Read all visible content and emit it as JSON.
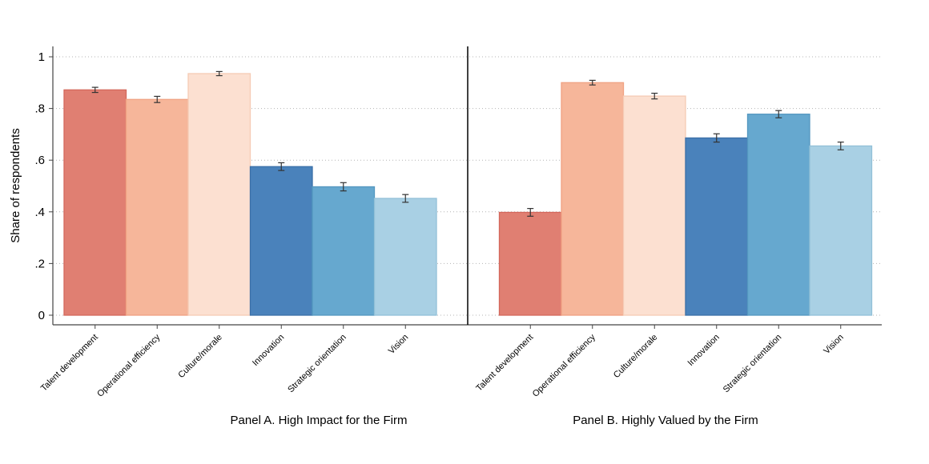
{
  "chart_data": {
    "type": "bar",
    "ylabel": "Share of respondents",
    "ylim": [
      0,
      1
    ],
    "yticks": [
      {
        "value": 0,
        "label": "0"
      },
      {
        "value": 0.2,
        "label": ".2"
      },
      {
        "value": 0.4,
        "label": ".4"
      },
      {
        "value": 0.6,
        "label": ".6"
      },
      {
        "value": 0.8,
        "label": ".8"
      },
      {
        "value": 1,
        "label": "1"
      }
    ],
    "grid": "horizontal-dotted",
    "categories": [
      "Talent development",
      "Operational efficiency",
      "Culture/morale",
      "Innovation",
      "Strategic orientation",
      "Vision"
    ],
    "colors": [
      "#e07f72",
      "#f6b69a",
      "#fce0d1",
      "#4a82bb",
      "#66a8cf",
      "#a9d0e4"
    ],
    "border_colors": [
      "#d4685c",
      "#f0a283",
      "#f5cbb5",
      "#3a70a8",
      "#5497c0",
      "#92c0d8"
    ],
    "panels": [
      {
        "title": "Panel A. High Impact for the Firm",
        "values": [
          0.872,
          0.835,
          0.935,
          0.575,
          0.497,
          0.452
        ],
        "err_low": [
          0.862,
          0.823,
          0.927,
          0.56,
          0.481,
          0.437
        ],
        "err_high": [
          0.882,
          0.847,
          0.943,
          0.59,
          0.513,
          0.467
        ]
      },
      {
        "title": "Panel B. Highly Valued by the Firm",
        "values": [
          0.398,
          0.9,
          0.848,
          0.686,
          0.778,
          0.655
        ],
        "err_low": [
          0.383,
          0.891,
          0.837,
          0.67,
          0.764,
          0.64
        ],
        "err_high": [
          0.413,
          0.909,
          0.859,
          0.702,
          0.792,
          0.67
        ]
      }
    ]
  }
}
